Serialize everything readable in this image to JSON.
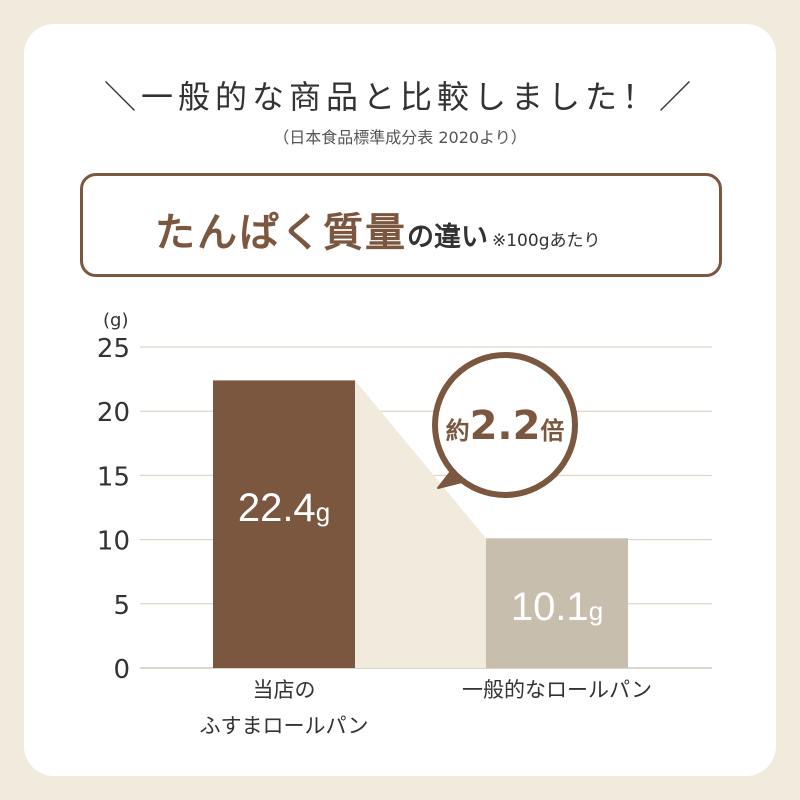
{
  "headline": "＼一般的な商品と比較しました！／",
  "source_note": "（日本食品標準成分表 2020より）",
  "banner": {
    "main": "たんぱく質量",
    "sub": "の違い",
    "note": "※100gあたり"
  },
  "colors": {
    "background": "#f1ebde",
    "accent_brown": "#7b5740",
    "bar_primary": "#7b5740",
    "bar_secondary": "#c8bead",
    "connector": "#f1ebde"
  },
  "callout": {
    "prefix": "約",
    "value": "2.2",
    "suffix": "倍"
  },
  "chart_data": {
    "type": "bar",
    "y_unit": "(g)",
    "ylim": [
      0,
      25
    ],
    "yticks": [
      0,
      5,
      10,
      15,
      20,
      25
    ],
    "grid": true,
    "categories": [
      "当店の\nふすまロールパン",
      "一般的なロールパン"
    ],
    "values": [
      22.4,
      10.1
    ],
    "data_labels": [
      {
        "number": "22.4",
        "unit": "g"
      },
      {
        "number": "10.1",
        "unit": "g"
      }
    ]
  }
}
